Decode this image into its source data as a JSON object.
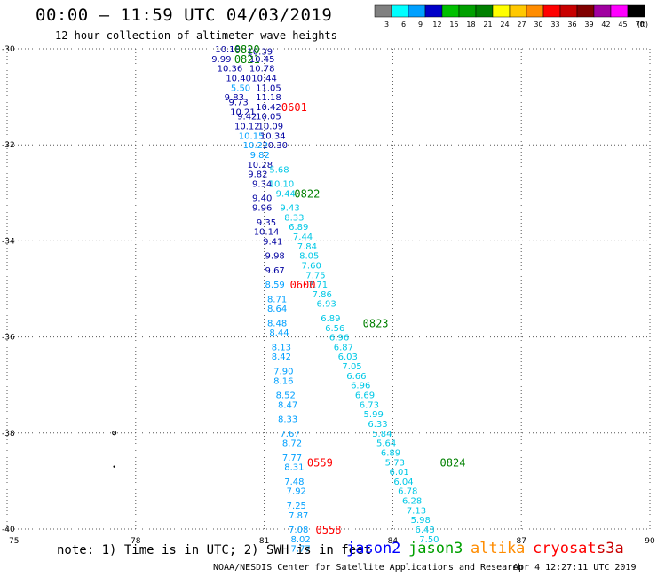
{
  "header": {
    "title": "00:00 – 11:59 UTC 04/03/2019",
    "subtitle": "12 hour collection of altimeter wave heights"
  },
  "legend": {
    "unit": "(ft)",
    "bins": [
      {
        "label": "3",
        "color": "#808080"
      },
      {
        "label": "6",
        "color": "#00FFFF"
      },
      {
        "label": "9",
        "color": "#00A0FF"
      },
      {
        "label": "12",
        "color": "#0000C8"
      },
      {
        "label": "15",
        "color": "#00C000"
      },
      {
        "label": "18",
        "color": "#00A000"
      },
      {
        "label": "21",
        "color": "#008000"
      },
      {
        "label": "24",
        "color": "#FFFF00"
      },
      {
        "label": "27",
        "color": "#FFC800"
      },
      {
        "label": "30",
        "color": "#FF8C00"
      },
      {
        "label": "33",
        "color": "#FF0000"
      },
      {
        "label": "36",
        "color": "#C80000"
      },
      {
        "label": "39",
        "color": "#800000"
      },
      {
        "label": "42",
        "color": "#A000A0"
      },
      {
        "label": "45",
        "color": "#FF00FF"
      },
      {
        "label": "70",
        "color": "#000000"
      }
    ]
  },
  "footer": {
    "note": "note: 1) Time is in UTC; 2) SWH is in feet",
    "credit": "NOAA/NESDIS Center for Satellite Applications and Research",
    "timestamp": "Apr  4 12:27:11 UTC 2019",
    "satellites": [
      {
        "name": "jason2",
        "color": "#0000FF"
      },
      {
        "name": "jason3",
        "color": "#00A000"
      },
      {
        "name": "altika",
        "color": "#FF8C00"
      },
      {
        "name": "cryosat",
        "color": "#FF0000"
      },
      {
        "name": "s3a",
        "color": "#C80000"
      }
    ]
  },
  "chart_data": {
    "type": "scatter",
    "x_ticks": [
      "75",
      "78",
      "81",
      "84",
      "87",
      "90"
    ],
    "y_ticks": [
      "-30",
      "-32",
      "-34",
      "-36",
      "-38",
      "-40"
    ],
    "xlim": [
      75,
      90
    ],
    "ylim": [
      -40,
      -30
    ],
    "grid": "dotted",
    "time_labels": [
      {
        "text": "0820",
        "lon": 80.6,
        "lat": -30.0,
        "color": "#008000"
      },
      {
        "text": "0821",
        "lon": 80.6,
        "lat": -30.2,
        "color": "#008000"
      },
      {
        "text": "0601",
        "lon": 81.7,
        "lat": -31.2,
        "color": "#FF0000"
      },
      {
        "text": "0822",
        "lon": 82.0,
        "lat": -33.0,
        "color": "#008000"
      },
      {
        "text": "0600",
        "lon": 81.9,
        "lat": -34.9,
        "color": "#FF0000"
      },
      {
        "text": "0823",
        "lon": 83.6,
        "lat": -35.7,
        "color": "#008000"
      },
      {
        "text": "0824",
        "lon": 85.4,
        "lat": -38.6,
        "color": "#008000"
      },
      {
        "text": "0559",
        "lon": 82.3,
        "lat": -38.6,
        "color": "#FF0000"
      },
      {
        "text": "0558",
        "lon": 82.5,
        "lat": -40.0,
        "color": "#FF0000"
      }
    ],
    "tracks": [
      {
        "name": "track-a",
        "color": "#0000A0",
        "points": [
          {
            "lon": 80.15,
            "lat": -30.0,
            "v": "10.18"
          },
          {
            "lon": 80.0,
            "lat": -30.2,
            "v": "9.99"
          },
          {
            "lon": 80.2,
            "lat": -30.4,
            "v": "10.36"
          },
          {
            "lon": 80.4,
            "lat": -30.6,
            "v": "10.40"
          },
          {
            "lon": 80.45,
            "lat": -30.8,
            "v": "5.50",
            "c": "#00A0FF"
          },
          {
            "lon": 80.3,
            "lat": -31.0,
            "v": "9.83"
          },
          {
            "lon": 80.4,
            "lat": -31.1,
            "v": "9.73"
          },
          {
            "lon": 80.5,
            "lat": -31.3,
            "v": "10.21"
          },
          {
            "lon": 80.6,
            "lat": -31.4,
            "v": "9.42"
          },
          {
            "lon": 80.6,
            "lat": -31.6,
            "v": "10.12"
          },
          {
            "lon": 80.7,
            "lat": -31.8,
            "v": "10.15",
            "c": "#00A0FF"
          },
          {
            "lon": 80.8,
            "lat": -32.0,
            "v": "10.22",
            "c": "#00A0FF"
          },
          {
            "lon": 80.9,
            "lat": -32.2,
            "v": "9.82",
            "c": "#00A0FF"
          },
          {
            "lon": 80.9,
            "lat": -32.4,
            "v": "10.28"
          },
          {
            "lon": 80.85,
            "lat": -32.6,
            "v": "9.82"
          },
          {
            "lon": 80.95,
            "lat": -32.8,
            "v": "9.34"
          },
          {
            "lon": 80.95,
            "lat": -33.1,
            "v": "9.40"
          },
          {
            "lon": 80.95,
            "lat": -33.3,
            "v": "9.96"
          },
          {
            "lon": 81.05,
            "lat": -33.6,
            "v": "9.35"
          },
          {
            "lon": 81.05,
            "lat": -33.8,
            "v": "10.14"
          },
          {
            "lon": 81.2,
            "lat": -34.0,
            "v": "9.41"
          },
          {
            "lon": 81.25,
            "lat": -34.3,
            "v": "9.98"
          },
          {
            "lon": 81.25,
            "lat": -34.6,
            "v": "9.67"
          },
          {
            "lon": 81.25,
            "lat": -34.9,
            "v": "8.59",
            "c": "#00A0FF"
          },
          {
            "lon": 81.3,
            "lat": -35.2,
            "v": "8.71",
            "c": "#00A0FF"
          },
          {
            "lon": 81.3,
            "lat": -35.4,
            "v": "8.64",
            "c": "#00A0FF"
          },
          {
            "lon": 81.3,
            "lat": -35.7,
            "v": "8.48",
            "c": "#00A0FF"
          },
          {
            "lon": 81.35,
            "lat": -35.9,
            "v": "8.44",
            "c": "#00A0FF"
          },
          {
            "lon": 81.4,
            "lat": -36.2,
            "v": "8.13",
            "c": "#00A0FF"
          },
          {
            "lon": 81.4,
            "lat": -36.4,
            "v": "8.42",
            "c": "#00A0FF"
          },
          {
            "lon": 81.45,
            "lat": -36.7,
            "v": "7.90",
            "c": "#00A0FF"
          },
          {
            "lon": 81.45,
            "lat": -36.9,
            "v": "8.16",
            "c": "#00A0FF"
          },
          {
            "lon": 81.5,
            "lat": -37.2,
            "v": "8.52",
            "c": "#00A0FF"
          },
          {
            "lon": 81.55,
            "lat": -37.4,
            "v": "8.47",
            "c": "#00A0FF"
          },
          {
            "lon": 81.55,
            "lat": -37.7,
            "v": "8.33",
            "c": "#00A0FF"
          },
          {
            "lon": 81.6,
            "lat": -38.0,
            "v": "7.67",
            "c": "#00A0FF"
          },
          {
            "lon": 81.65,
            "lat": -38.2,
            "v": "8.72",
            "c": "#00A0FF"
          },
          {
            "lon": 81.65,
            "lat": -38.5,
            "v": "7.77",
            "c": "#00A0FF"
          },
          {
            "lon": 81.7,
            "lat": -38.7,
            "v": "8.31",
            "c": "#00A0FF"
          },
          {
            "lon": 81.7,
            "lat": -39.0,
            "v": "7.48",
            "c": "#00A0FF"
          },
          {
            "lon": 81.75,
            "lat": -39.2,
            "v": "7.92",
            "c": "#00A0FF"
          },
          {
            "lon": 81.75,
            "lat": -39.5,
            "v": "7.25",
            "c": "#00A0FF"
          },
          {
            "lon": 81.8,
            "lat": -39.7,
            "v": "7.87",
            "c": "#00A0FF"
          },
          {
            "lon": 81.8,
            "lat": -40.0,
            "v": "7.08",
            "c": "#00A0FF"
          },
          {
            "lon": 81.85,
            "lat": -40.2,
            "v": "8.02",
            "c": "#00A0FF"
          },
          {
            "lon": 81.85,
            "lat": -40.4,
            "v": "7.77",
            "c": "#00A0FF"
          }
        ]
      },
      {
        "name": "track-b",
        "color": "#0000A0",
        "points": [
          {
            "lon": 80.9,
            "lat": -30.05,
            "v": "10.39"
          },
          {
            "lon": 80.95,
            "lat": -30.2,
            "v": "10.45"
          },
          {
            "lon": 80.95,
            "lat": -30.4,
            "v": "10.78"
          },
          {
            "lon": 81.0,
            "lat": -30.6,
            "v": "10.44"
          },
          {
            "lon": 81.1,
            "lat": -30.8,
            "v": "11.05"
          },
          {
            "lon": 81.1,
            "lat": -31.0,
            "v": "11.18"
          },
          {
            "lon": 81.1,
            "lat": -31.2,
            "v": "10.42"
          },
          {
            "lon": 81.1,
            "lat": -31.4,
            "v": "10.05"
          },
          {
            "lon": 81.15,
            "lat": -31.6,
            "v": "10.09"
          },
          {
            "lon": 81.2,
            "lat": -31.8,
            "v": "10.34"
          },
          {
            "lon": 81.25,
            "lat": -32.0,
            "v": "10.30"
          }
        ]
      },
      {
        "name": "track-c",
        "color": "#00C8E6",
        "points": [
          {
            "lon": 81.35,
            "lat": -32.5,
            "v": "5.68"
          },
          {
            "lon": 81.4,
            "lat": -32.8,
            "v": "10.10"
          },
          {
            "lon": 81.5,
            "lat": -33.0,
            "v": "9.44"
          },
          {
            "lon": 81.6,
            "lat": -33.3,
            "v": "9.43"
          },
          {
            "lon": 81.7,
            "lat": -33.5,
            "v": "8.33"
          },
          {
            "lon": 81.8,
            "lat": -33.7,
            "v": "6.89"
          },
          {
            "lon": 81.9,
            "lat": -33.9,
            "v": "7.44"
          },
          {
            "lon": 82.0,
            "lat": -34.1,
            "v": "7.84"
          },
          {
            "lon": 82.05,
            "lat": -34.3,
            "v": "8.05"
          },
          {
            "lon": 82.1,
            "lat": -34.5,
            "v": "7.60"
          },
          {
            "lon": 82.2,
            "lat": -34.7,
            "v": "7.75"
          },
          {
            "lon": 82.25,
            "lat": -34.9,
            "v": "7.71"
          },
          {
            "lon": 82.35,
            "lat": -35.1,
            "v": "7.86"
          },
          {
            "lon": 82.45,
            "lat": -35.3,
            "v": "6.93"
          },
          {
            "lon": 82.55,
            "lat": -35.6,
            "v": "6.89"
          },
          {
            "lon": 82.65,
            "lat": -35.8,
            "v": "6.56"
          },
          {
            "lon": 82.75,
            "lat": -36.0,
            "v": "6.96"
          },
          {
            "lon": 82.85,
            "lat": -36.2,
            "v": "6.87"
          },
          {
            "lon": 82.95,
            "lat": -36.4,
            "v": "6.03"
          },
          {
            "lon": 83.05,
            "lat": -36.6,
            "v": "7.05"
          },
          {
            "lon": 83.15,
            "lat": -36.8,
            "v": "6.66"
          },
          {
            "lon": 83.25,
            "lat": -37.0,
            "v": "6.96"
          },
          {
            "lon": 83.35,
            "lat": -37.2,
            "v": "6.69"
          },
          {
            "lon": 83.45,
            "lat": -37.4,
            "v": "6.73"
          },
          {
            "lon": 83.55,
            "lat": -37.6,
            "v": "5.99"
          },
          {
            "lon": 83.65,
            "lat": -37.8,
            "v": "6.33"
          },
          {
            "lon": 83.75,
            "lat": -38.0,
            "v": "5.84"
          },
          {
            "lon": 83.85,
            "lat": -38.2,
            "v": "5.64"
          },
          {
            "lon": 83.95,
            "lat": -38.4,
            "v": "6.89"
          },
          {
            "lon": 84.05,
            "lat": -38.6,
            "v": "5.73"
          },
          {
            "lon": 84.15,
            "lat": -38.8,
            "v": "6.01"
          },
          {
            "lon": 84.25,
            "lat": -39.0,
            "v": "6.04"
          },
          {
            "lon": 84.35,
            "lat": -39.2,
            "v": "6.78"
          },
          {
            "lon": 84.45,
            "lat": -39.4,
            "v": "6.28"
          },
          {
            "lon": 84.55,
            "lat": -39.6,
            "v": "7.13"
          },
          {
            "lon": 84.65,
            "lat": -39.8,
            "v": "5.98"
          },
          {
            "lon": 84.75,
            "lat": -40.0,
            "v": "6.43"
          },
          {
            "lon": 84.85,
            "lat": -40.2,
            "v": "7.50"
          }
        ]
      }
    ],
    "markers": [
      {
        "lon": 77.5,
        "lat": -38.0,
        "symbol": "o"
      },
      {
        "lon": 77.5,
        "lat": -38.7,
        "symbol": "."
      }
    ]
  }
}
